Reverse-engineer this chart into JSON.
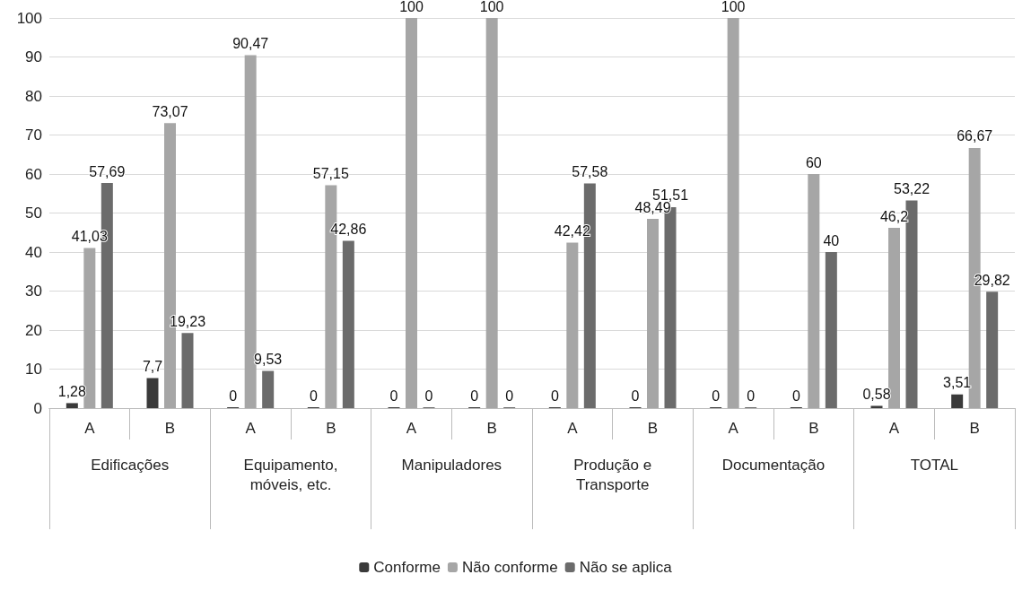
{
  "chart_data": {
    "type": "bar",
    "categories": [
      "A",
      "B",
      "A",
      "B",
      "A",
      "B",
      "A",
      "B",
      "A",
      "B",
      "A",
      "B"
    ],
    "annotations": [
      "Edificações",
      "Equipamento,\nmóveis, etc.",
      "Manipuladores",
      "Produção e\nTransporte",
      "Documentação",
      "TOTAL"
    ],
    "series": [
      {
        "name": "Conforme",
        "color": "#3a3a3a",
        "values": [
          1.28,
          7.7,
          0,
          0,
          0,
          0,
          0,
          0,
          0,
          0,
          0.58,
          3.51
        ],
        "value_labels": [
          "1,28",
          "7,7",
          "0",
          "0",
          "0",
          "0",
          "0",
          "0",
          "0",
          "0",
          "0,58",
          "3,51"
        ]
      },
      {
        "name": "Não conforme",
        "color": "#a6a6a6",
        "values": [
          41.03,
          73.07,
          90.47,
          57.15,
          100,
          100,
          42.42,
          48.49,
          100,
          60,
          46.2,
          66.67
        ],
        "value_labels": [
          "41,03",
          "73,07",
          "90,47",
          "57,15",
          "100",
          "100",
          "42,42",
          "48,49",
          "100",
          "60",
          "46,2",
          "66,67"
        ]
      },
      {
        "name": "Não se aplica",
        "color": "#6b6b6b",
        "values": [
          57.69,
          19.23,
          9.53,
          42.86,
          0,
          0,
          57.58,
          51.51,
          0,
          40,
          53.22,
          29.82
        ],
        "value_labels": [
          "57,69",
          "19,23",
          "9,53",
          "42,86",
          "0",
          "0",
          "57,58",
          "51,51",
          "0",
          "40",
          "53,22",
          "29,82"
        ]
      }
    ],
    "ylim": [
      0,
      100
    ],
    "yticks": [
      0,
      10,
      20,
      30,
      40,
      50,
      60,
      70,
      80,
      90,
      100
    ],
    "grid": "y",
    "legend": "bottom"
  }
}
